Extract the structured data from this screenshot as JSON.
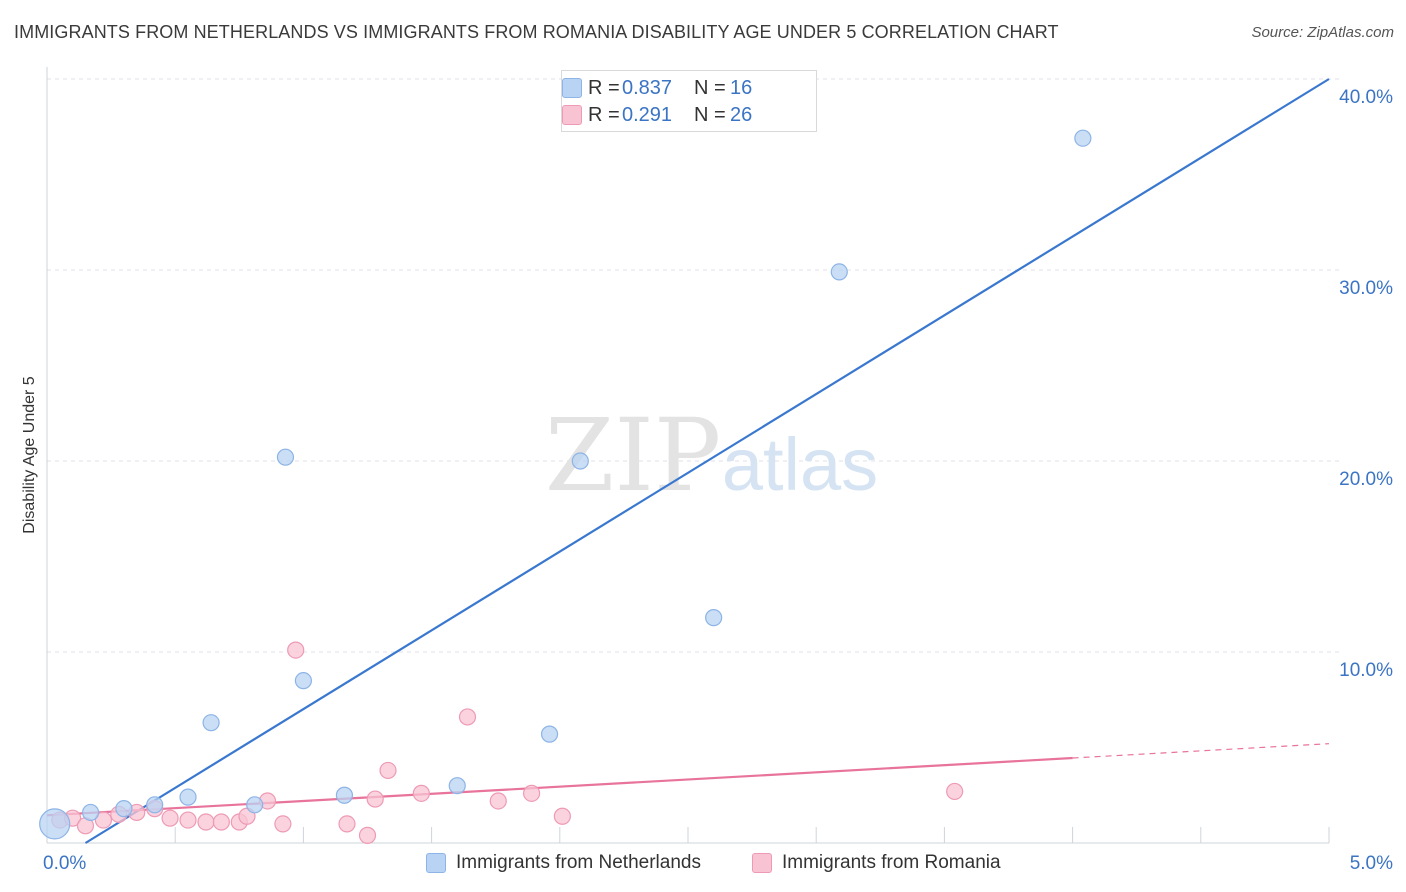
{
  "title": "IMMIGRANTS FROM NETHERLANDS VS IMMIGRANTS FROM ROMANIA DISABILITY AGE UNDER 5 CORRELATION CHART",
  "source": "Source: ZipAtlas.com",
  "watermark": {
    "zip": "ZIP",
    "atlas": "atlas"
  },
  "colors": {
    "blue_fill": "#b8d3f3",
    "blue_stroke": "#8db4e6",
    "blue_line": "#3a78d0",
    "pink_fill": "#f8c4d3",
    "pink_stroke": "#ee9ab5",
    "pink_line": "#e8739b",
    "tick_text": "#3b74c4",
    "grid": "#dde2e8"
  },
  "legend": {
    "rows": [
      {
        "label": "R =",
        "r": "0.837",
        "n_label": "N =",
        "n": "16"
      },
      {
        "label": "R =",
        "r": "0.291",
        "n_label": "N =",
        "n": "26"
      }
    ]
  },
  "chart_data": {
    "type": "scatter",
    "title": "IMMIGRANTS FROM NETHERLANDS VS IMMIGRANTS FROM ROMANIA DISABILITY AGE UNDER 5 CORRELATION CHART",
    "xlabel": "",
    "ylabel": "Disability Age Under 5",
    "xlim": [
      0,
      5
    ],
    "ylim": [
      0,
      40
    ],
    "x_tick_labels": {
      "min": "0.0%",
      "max": "5.0%"
    },
    "y_ticks": [
      10,
      20,
      30,
      40
    ],
    "y_tick_labels": [
      "10.0%",
      "20.0%",
      "30.0%",
      "40.0%"
    ],
    "series": [
      {
        "name": "Immigrants from Netherlands",
        "color": "blue",
        "R": 0.837,
        "N": 16,
        "points": [
          [
            0.03,
            1.0
          ],
          [
            0.17,
            1.6
          ],
          [
            0.3,
            1.8
          ],
          [
            0.42,
            2.0
          ],
          [
            0.55,
            2.4
          ],
          [
            0.64,
            6.3
          ],
          [
            0.81,
            2.0
          ],
          [
            0.93,
            20.2
          ],
          [
            1.0,
            8.5
          ],
          [
            1.16,
            2.5
          ],
          [
            1.6,
            3.0
          ],
          [
            1.96,
            5.7
          ],
          [
            2.08,
            20.0
          ],
          [
            2.6,
            11.8
          ],
          [
            3.09,
            29.9
          ],
          [
            4.04,
            36.9
          ]
        ],
        "trend": {
          "x0": 0.15,
          "y0": 0.0,
          "x1": 5.0,
          "y1": 40.0
        }
      },
      {
        "name": "Immigrants from Romania",
        "color": "pink",
        "R": 0.291,
        "N": 26,
        "points": [
          [
            0.05,
            1.2
          ],
          [
            0.1,
            1.3
          ],
          [
            0.15,
            0.9
          ],
          [
            0.22,
            1.2
          ],
          [
            0.28,
            1.5
          ],
          [
            0.35,
            1.6
          ],
          [
            0.42,
            1.8
          ],
          [
            0.48,
            1.3
          ],
          [
            0.55,
            1.2
          ],
          [
            0.62,
            1.1
          ],
          [
            0.68,
            1.1
          ],
          [
            0.75,
            1.1
          ],
          [
            0.78,
            1.4
          ],
          [
            0.86,
            2.2
          ],
          [
            0.92,
            1.0
          ],
          [
            0.97,
            10.1
          ],
          [
            1.17,
            1.0
          ],
          [
            1.25,
            0.4
          ],
          [
            1.28,
            2.3
          ],
          [
            1.33,
            3.8
          ],
          [
            1.46,
            2.6
          ],
          [
            1.64,
            6.6
          ],
          [
            1.76,
            2.2
          ],
          [
            1.89,
            2.6
          ],
          [
            2.01,
            1.4
          ],
          [
            3.54,
            2.7
          ]
        ],
        "trend": {
          "x0": 0.0,
          "y0": 1.45,
          "x1": 4.0,
          "y1": 4.45
        },
        "trend_dashed_to": {
          "x": 5.0,
          "y": 5.2
        }
      }
    ]
  }
}
